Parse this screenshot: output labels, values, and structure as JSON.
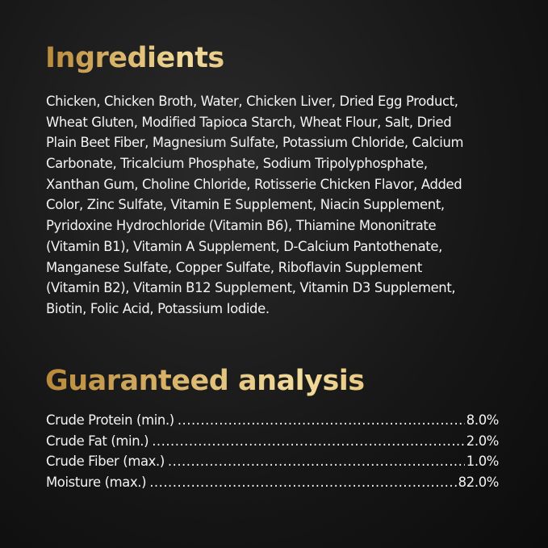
{
  "ingredients": {
    "title": "Ingredients",
    "lines": [
      "Chicken, Chicken Broth, Water, Chicken Liver, Dried Egg Product,",
      "Wheat Gluten, Modified Tapioca Starch, Wheat Flour, Salt, Dried",
      "Plain Beet Fiber, Magnesium Sulfate, Potassium Chloride, Calcium",
      "Carbonate, Tricalcium Phosphate, Sodium Tripolyphosphate,",
      "Xanthan Gum, Choline Chloride, Rotisserie Chicken Flavor, Added",
      "Color, Zinc Sulfate, Vitamin E Supplement, Niacin Supplement,",
      "Pyridoxine Hydrochloride (Vitamin B6), Thiamine Mononitrate",
      "(Vitamin B1), Vitamin A Supplement,  D-Calcium Pantothenate,",
      "Manganese Sulfate, Copper Sulfate, Riboflavin Supplement",
      "(Vitamin B2), Vitamin B12 Supplement, Vitamin D3 Supplement,",
      "Biotin, Folic Acid, Potassium Iodide."
    ]
  },
  "analysis": {
    "title": "Guaranteed analysis",
    "rows": [
      {
        "label": "Crude Protein (min.)",
        "value": "8.0%"
      },
      {
        "label": "Crude Fat (min.)",
        "value": "2.0%"
      },
      {
        "label": "Crude Fiber (max.)",
        "value": "1.0%"
      },
      {
        "label": "Moisture (max.)",
        "value": "82.0%"
      }
    ]
  },
  "colors": {
    "background": "#161616",
    "heading_gold": "#d9b46a",
    "text": "#f4f4f4"
  }
}
